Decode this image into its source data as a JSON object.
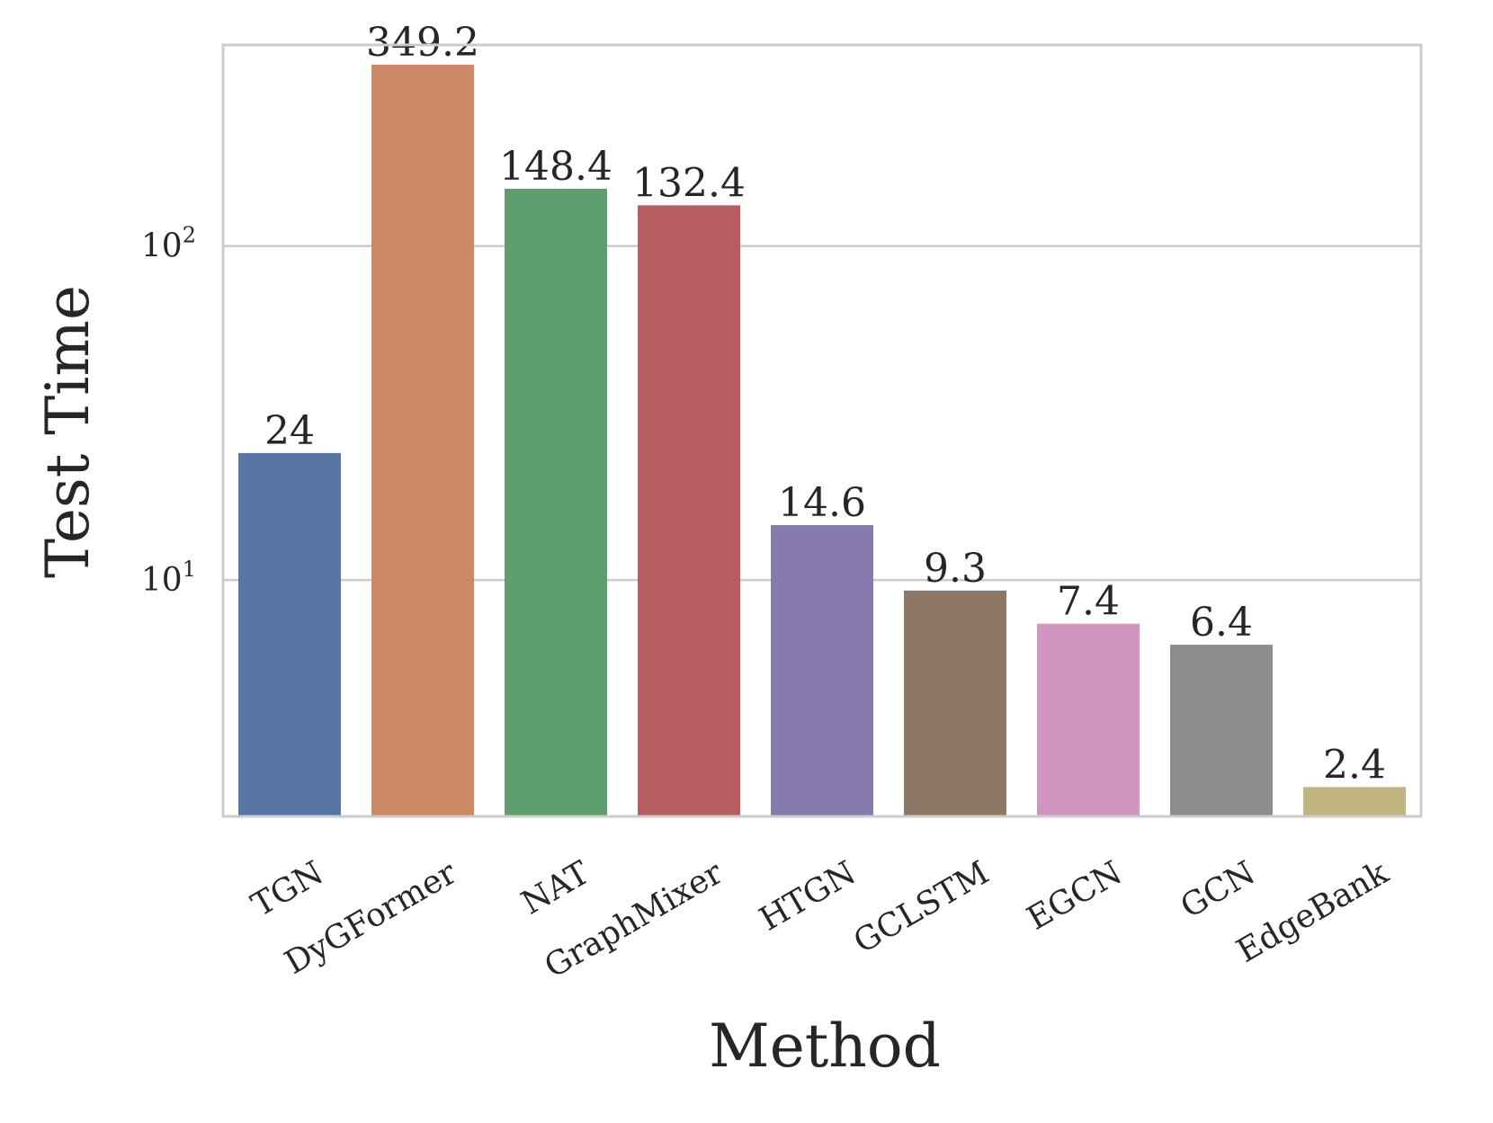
{
  "chart_data": {
    "type": "bar",
    "xlabel": "Method",
    "ylabel": "Test Time",
    "yscale": "log",
    "ylim": [
      1.96,
      400
    ],
    "grid": "y-major",
    "categories": [
      "TGN",
      "DyGFormer",
      "NAT",
      "GraphMixer",
      "HTGN",
      "GCLSTM",
      "EGCN",
      "GCN",
      "EdgeBank"
    ],
    "values": [
      24,
      349.2,
      148.4,
      132.4,
      14.6,
      9.3,
      7.4,
      6.4,
      2.4
    ],
    "value_labels": [
      "24",
      "349.2",
      "148.4",
      "132.4",
      "14.6",
      "9.3",
      "7.4",
      "6.4",
      "2.4"
    ],
    "colors": [
      "#5875a4",
      "#cc8963",
      "#5f9e6e",
      "#b55d60",
      "#857aab",
      "#8d7866",
      "#d095bf",
      "#8c8c8c",
      "#c1b37f"
    ],
    "y_ticks": [
      {
        "value": 10,
        "base": "10",
        "exp": "1"
      },
      {
        "value": 100,
        "base": "10",
        "exp": "2"
      }
    ],
    "frame_color": "#cccccc",
    "grid_color": "#cccccc",
    "text_color": "#262626"
  }
}
